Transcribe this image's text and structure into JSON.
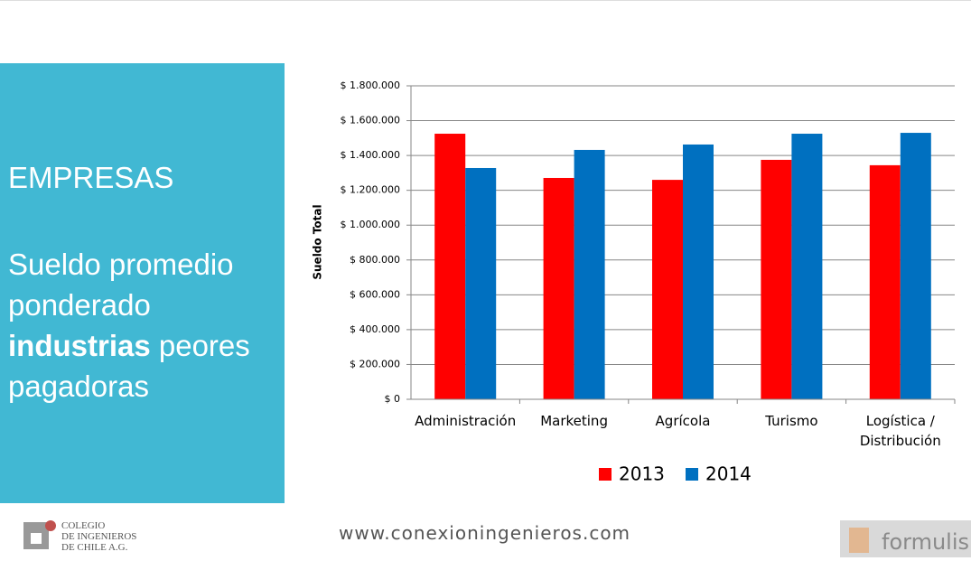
{
  "panel": {
    "heading": "EMPRESAS",
    "text_before": "Sueldo promedio ponderado",
    "text_bold": "industrias",
    "text_after": "peores pagadoras"
  },
  "chart_data": {
    "type": "bar",
    "y_label": "Sueldo Total",
    "categories": [
      "Administración",
      "Marketing",
      "Agrícola",
      "Turismo",
      "Logística / Distribución"
    ],
    "series": [
      {
        "name": "2013",
        "color": "#ff0000",
        "values": [
          1525000,
          1271000,
          1260000,
          1375000,
          1344000
        ]
      },
      {
        "name": "2014",
        "color": "#0070c0",
        "values": [
          1328000,
          1432000,
          1463000,
          1525000,
          1530000
        ]
      }
    ],
    "ylim": [
      0,
      1800000
    ],
    "yticks": [
      {
        "value": 0,
        "label": "$ 0"
      },
      {
        "value": 200000,
        "label": "$ 200.000"
      },
      {
        "value": 400000,
        "label": "$ 400.000"
      },
      {
        "value": 600000,
        "label": "$ 600.000"
      },
      {
        "value": 800000,
        "label": "$ 800.000"
      },
      {
        "value": 1000000,
        "label": "$ 1.000.000"
      },
      {
        "value": 1200000,
        "label": "$ 1.200.000"
      },
      {
        "value": 1400000,
        "label": "$ 1.400.000"
      },
      {
        "value": 1600000,
        "label": "$ 1.600.000"
      },
      {
        "value": 1800000,
        "label": "$ 1.800.000"
      }
    ],
    "grid": true,
    "legend": "bottom"
  },
  "footer": {
    "logo_lines": [
      "COLEGIO",
      "DE INGENIEROS",
      "DE CHILE A.G."
    ],
    "url": "www.conexioningenieros.com",
    "brand": "formulis"
  }
}
